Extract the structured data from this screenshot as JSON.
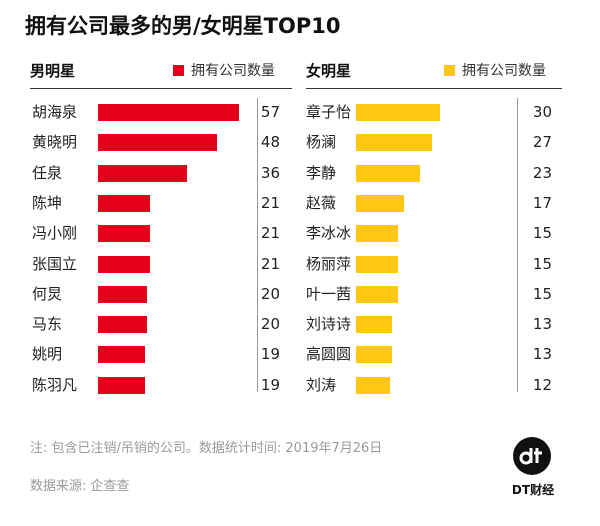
{
  "title": "拥有公司最多的男/女明星TOP10",
  "male": {
    "heading": "男明星",
    "legend": "拥有公司数量",
    "color": "#e3001b"
  },
  "female": {
    "heading": "女明星",
    "legend": "拥有公司数量",
    "color": "#fdc713"
  },
  "chart_data": [
    {
      "type": "bar",
      "categories": [
        "胡海泉",
        "黄晓明",
        "任泉",
        "陈坤",
        "冯小刚",
        "张国立",
        "何炅",
        "马东",
        "姚明",
        "陈羽凡"
      ],
      "series": [
        {
          "name": "拥有公司数量",
          "values": [
            57,
            48,
            36,
            21,
            21,
            21,
            20,
            20,
            19,
            19
          ]
        }
      ]
    },
    {
      "type": "bar",
      "categories": [
        "章子怡",
        "杨澜",
        "李静",
        "赵薇",
        "李冰冰",
        "杨丽萍",
        "叶一茜",
        "刘诗诗",
        "高圆圆",
        "刘涛"
      ],
      "series": [
        {
          "name": "拥有公司数量",
          "values": [
            30,
            27,
            23,
            17,
            15,
            15,
            15,
            13,
            13,
            12
          ]
        }
      ]
    }
  ],
  "footer": {
    "note": "注: 包含已注销/吊销的公司。数据统计时间: 2019年7月26日",
    "source": "数据来源: 企查查",
    "logo_text": "DT财经"
  }
}
